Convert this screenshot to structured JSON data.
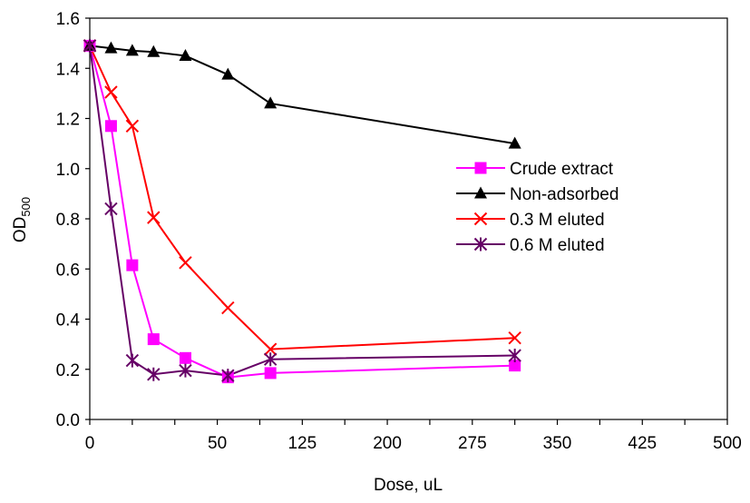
{
  "chart_data": {
    "type": "line",
    "xlabel": "Dose, uL",
    "ylabel": "OD",
    "ylabel_subscript": "500",
    "categories": [
      "0",
      "",
      "",
      "50",
      "",
      "125",
      "",
      "200",
      "",
      "275",
      "",
      "350",
      "",
      "425",
      "",
      "500"
    ],
    "ylim": [
      0,
      1.6
    ],
    "yticks": [
      "0.0",
      "0.2",
      "0.4",
      "0.6",
      "0.8",
      "1.0",
      "1.2",
      "1.4",
      "1.6"
    ],
    "grid": false,
    "legend_position": "right",
    "series": [
      {
        "name": "Crude extract",
        "color": "#FF00FF",
        "marker": "square",
        "x": [
          0,
          0.5,
          1,
          1.5,
          2.25,
          3.25,
          4.25,
          10
        ],
        "values": [
          1.49,
          1.17,
          0.615,
          0.32,
          0.245,
          0.168,
          0.185,
          0.215
        ]
      },
      {
        "name": "Non-adsorbed",
        "color": "#000000",
        "marker": "triangle",
        "x": [
          0,
          0.5,
          1,
          1.5,
          2.25,
          3.25,
          4.25,
          10
        ],
        "values": [
          1.49,
          1.48,
          1.47,
          1.465,
          1.45,
          1.375,
          1.26,
          1.1
        ]
      },
      {
        "name": "0.3 M eluted",
        "color": "#FF0000",
        "marker": "x",
        "x": [
          0,
          0.5,
          1,
          1.5,
          2.25,
          3.25,
          4.25,
          10
        ],
        "values": [
          1.49,
          1.305,
          1.17,
          0.805,
          0.625,
          0.445,
          0.28,
          0.325
        ]
      },
      {
        "name": "0.6 M eluted",
        "color": "#660066",
        "marker": "star",
        "x": [
          0,
          0.5,
          1,
          1.5,
          2.25,
          3.25,
          4.25,
          10
        ],
        "values": [
          1.49,
          0.84,
          0.235,
          0.18,
          0.195,
          0.175,
          0.24,
          0.255
        ]
      }
    ]
  }
}
